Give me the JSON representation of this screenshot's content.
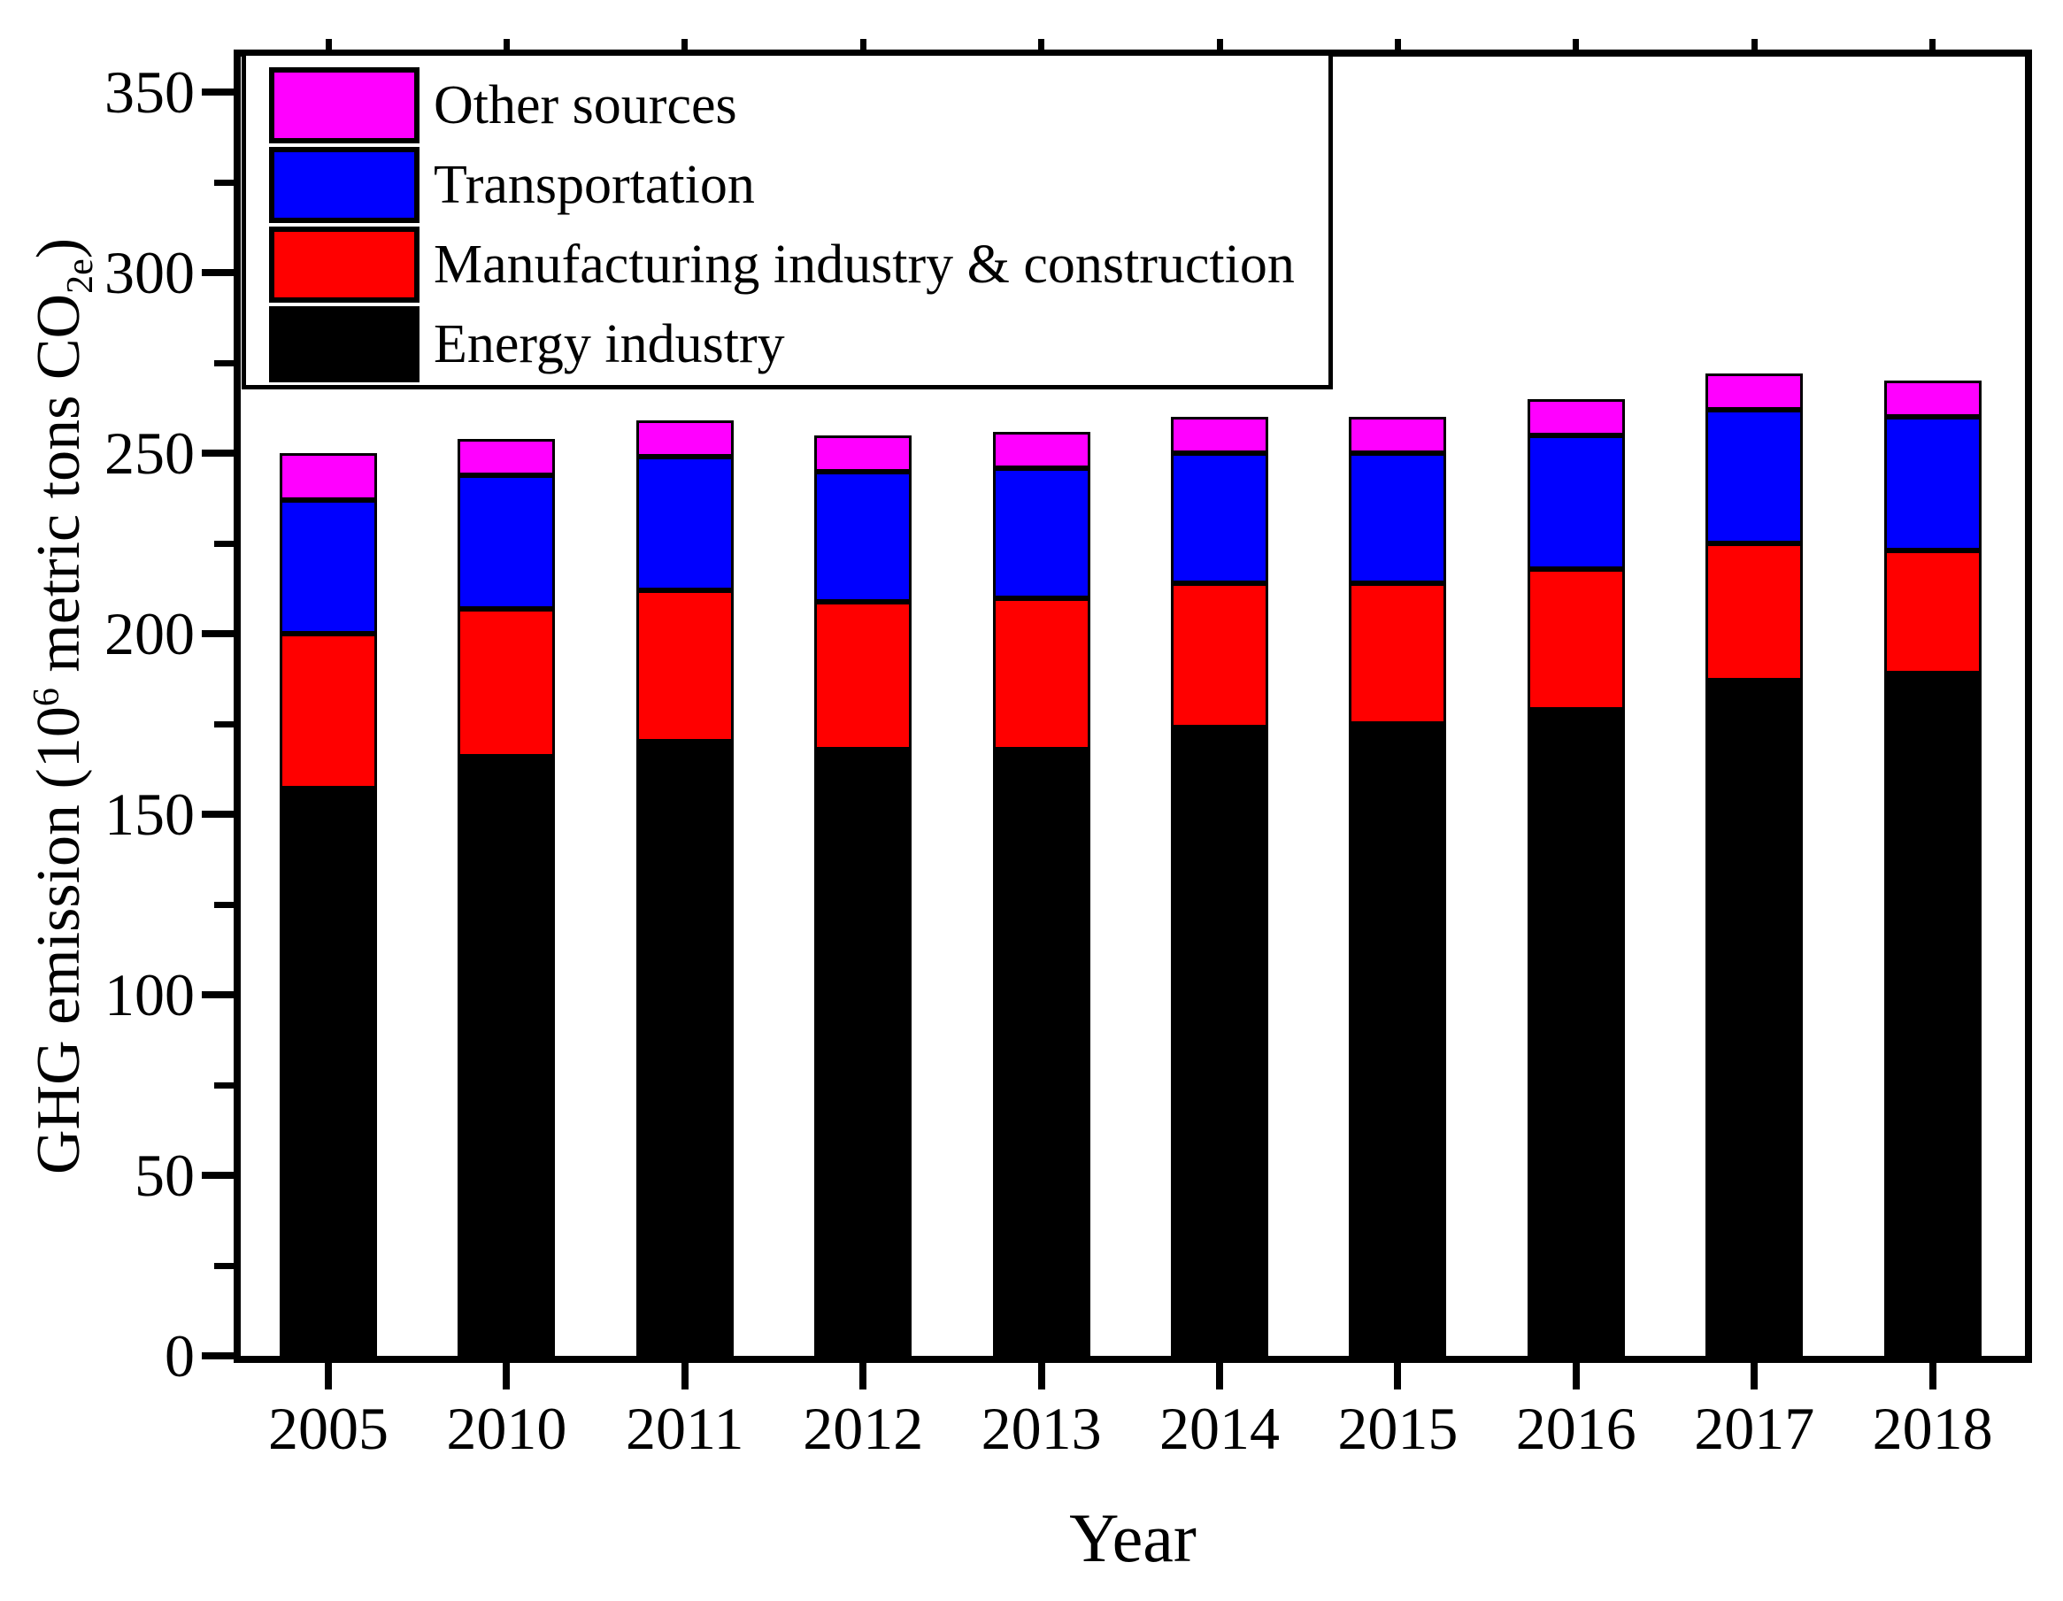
{
  "chart_data": {
    "type": "bar",
    "subtype": "stacked-vertical",
    "title": "",
    "xlabel": "Year",
    "ylabel": {
      "prefix": "GHG emission (10",
      "superscript": "6",
      "middle": " metric tons CO",
      "subscript": "2e",
      "suffix": ")"
    },
    "categories": [
      "2005",
      "2010",
      "2011",
      "2012",
      "2013",
      "2014",
      "2015",
      "2016",
      "2017",
      "2018"
    ],
    "series": [
      {
        "name": "Energy industry",
        "color": "#000000",
        "values": [
          157,
          166,
          170,
          168,
          168,
          174,
          175,
          179,
          187,
          189
        ]
      },
      {
        "name": "Manufacturing industry & construction",
        "color": "#ff0000",
        "values": [
          43,
          41,
          42,
          41,
          42,
          40,
          39,
          39,
          38,
          34
        ]
      },
      {
        "name": "Transportation",
        "color": "#0000ff",
        "values": [
          37,
          37,
          37,
          36,
          36,
          36,
          36,
          37,
          37,
          37
        ]
      },
      {
        "name": "Other sources",
        "color": "#ff00ff",
        "values": [
          13,
          10,
          10,
          10,
          10,
          10,
          10,
          10,
          10,
          10
        ]
      }
    ],
    "totals": [
      250,
      254,
      259,
      255,
      256,
      260,
      260,
      265,
      272,
      270
    ],
    "y_axis": {
      "min": 0,
      "max": 350,
      "major_ticks": [
        0,
        50,
        100,
        150,
        200,
        250,
        300,
        350
      ],
      "minor_ticks": [
        25,
        75,
        125,
        175,
        225,
        275,
        325
      ],
      "grid": false
    },
    "legend": {
      "position": "top-left-inside",
      "order_top_to_bottom": [
        "Other sources",
        "Transportation",
        "Manufacturing industry & construction",
        "Energy industry"
      ]
    }
  }
}
